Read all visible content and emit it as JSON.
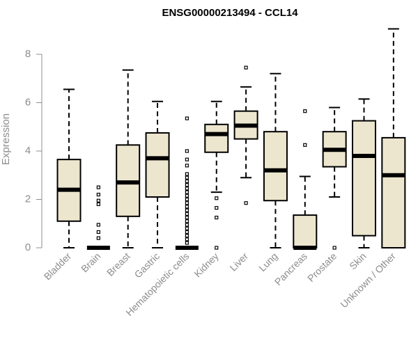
{
  "chart_data": {
    "type": "box",
    "title": "ENSG00000213494 - CCL14",
    "xlabel": "",
    "ylabel": "Expression",
    "ylim": [
      0,
      9.1
    ],
    "yticks": [
      0,
      2,
      4,
      6,
      8
    ],
    "ytick_labels": [
      "0",
      "2",
      "4",
      "6",
      "8"
    ],
    "grid": false,
    "legend": "none",
    "colors": {
      "box_fill": "#ede6cf",
      "box_stroke": "#000000",
      "axis": "#8c8c8c",
      "text": "#8c8c8c"
    },
    "categories": [
      "Bladder",
      "Brain",
      "Breast",
      "Gastric",
      "Hematopoietic cells",
      "Kidney",
      "Liver",
      "Lung",
      "Pancreas",
      "Prostate",
      "Skin",
      "Unknown / Other"
    ],
    "boxes": [
      {
        "label": "Bladder",
        "whisker_low": 0.0,
        "q1": 1.1,
        "median": 2.4,
        "q3": 3.65,
        "whisker_high": 6.55,
        "outliers": []
      },
      {
        "label": "Brain",
        "whisker_low": 0.0,
        "q1": 0.0,
        "median": 0.0,
        "q3": 0.0,
        "whisker_high": 0.0,
        "outliers": [
          0.4,
          0.65,
          0.95,
          1.8,
          1.95,
          2.2,
          2.5
        ]
      },
      {
        "label": "Breast",
        "whisker_low": 0.0,
        "q1": 1.3,
        "median": 2.7,
        "q3": 4.25,
        "whisker_high": 7.35,
        "outliers": []
      },
      {
        "label": "Gastric",
        "whisker_low": 0.0,
        "q1": 2.1,
        "median": 3.7,
        "q3": 4.75,
        "whisker_high": 6.05,
        "outliers": []
      },
      {
        "label": "Hematopoietic cells",
        "whisker_low": 0.0,
        "q1": 0.0,
        "median": 0.0,
        "q3": 0.0,
        "whisker_high": 0.0,
        "outliers": [
          0.2,
          0.35,
          0.5,
          0.65,
          0.8,
          0.95,
          1.1,
          1.25,
          1.4,
          1.55,
          1.7,
          1.85,
          2.0,
          2.15,
          2.3,
          2.45,
          2.6,
          2.75,
          2.9,
          3.05,
          3.4,
          3.65,
          4.0,
          5.35
        ]
      },
      {
        "label": "Kidney",
        "whisker_low": 2.3,
        "q1": 3.95,
        "median": 4.7,
        "q3": 5.1,
        "whisker_high": 6.05,
        "outliers": [
          0.0,
          1.25,
          1.65,
          2.05
        ]
      },
      {
        "label": "Liver",
        "whisker_low": 2.9,
        "q1": 4.5,
        "median": 5.05,
        "q3": 5.65,
        "whisker_high": 6.65,
        "outliers": [
          1.85,
          7.45
        ]
      },
      {
        "label": "Lung",
        "whisker_low": 0.0,
        "q1": 1.95,
        "median": 3.2,
        "q3": 4.8,
        "whisker_high": 7.2,
        "outliers": []
      },
      {
        "label": "Pancreas",
        "whisker_low": 0.0,
        "q1": 0.0,
        "median": 0.0,
        "q3": 1.35,
        "whisker_high": 2.95,
        "outliers": [
          4.25,
          5.65
        ]
      },
      {
        "label": "Prostate",
        "whisker_low": 2.1,
        "q1": 3.35,
        "median": 4.05,
        "q3": 4.8,
        "whisker_high": 5.8,
        "outliers": [
          0.0
        ]
      },
      {
        "label": "Skin",
        "whisker_low": 0.0,
        "q1": 0.5,
        "median": 3.8,
        "q3": 5.25,
        "whisker_high": 6.15,
        "outliers": []
      },
      {
        "label": "Unknown / Other",
        "whisker_low": 0.0,
        "q1": 0.0,
        "median": 3.0,
        "q3": 4.55,
        "whisker_high": 9.05,
        "outliers": []
      }
    ]
  }
}
